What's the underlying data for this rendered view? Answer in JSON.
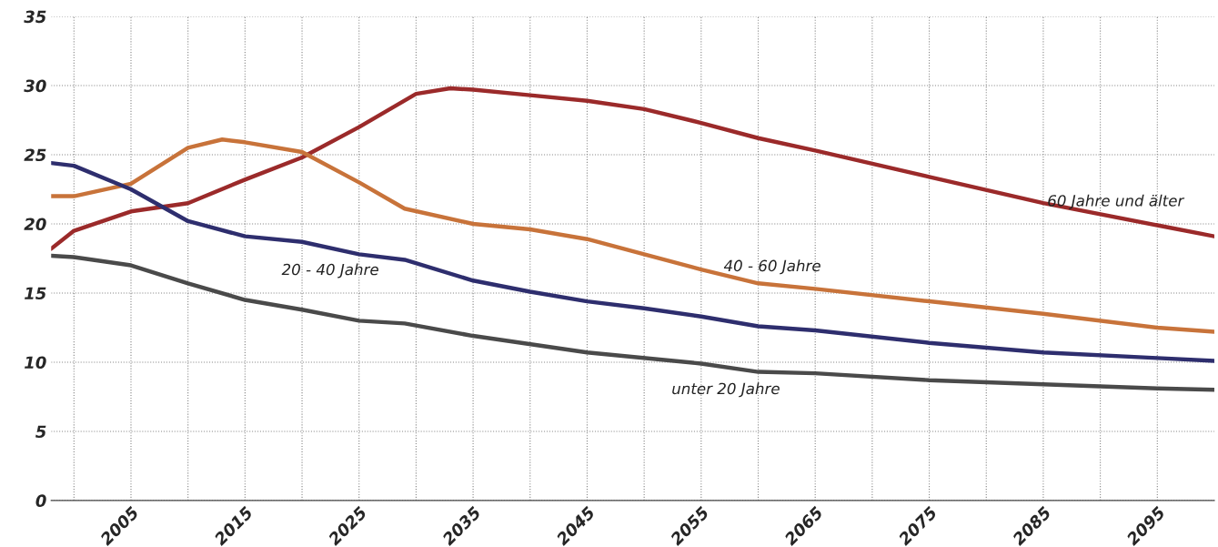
{
  "chart_data": {
    "type": "line",
    "xlim": [
      1998,
      2100
    ],
    "ylim": [
      0,
      35
    ],
    "xticks": [
      {
        "value": 2000,
        "label": null
      },
      2005,
      {
        "value": 2010,
        "label": null
      },
      2015,
      {
        "value": 2020,
        "label": null
      },
      2025,
      {
        "value": 2030,
        "label": null
      },
      2035,
      {
        "value": 2040,
        "label": null
      },
      2045,
      {
        "value": 2050,
        "label": null
      },
      2055,
      {
        "value": 2060,
        "label": null
      },
      2065,
      {
        "value": 2070,
        "label": null
      },
      2075,
      {
        "value": 2080,
        "label": null
      },
      2085,
      {
        "value": 2090,
        "label": null
      },
      2095
    ],
    "yticks": [
      0,
      5,
      10,
      15,
      20,
      25,
      30,
      35
    ],
    "grid": true,
    "legend": false,
    "line_style": "solid",
    "marker": "none",
    "series": [
      {
        "name": "60 Jahre und älter",
        "color": "#9b2a2a",
        "x": [
          1998,
          2000,
          2005,
          2010,
          2015,
          2020,
          2025,
          2030,
          2033,
          2035,
          2040,
          2045,
          2050,
          2055,
          2060,
          2065,
          2075,
          2085,
          2095,
          2100
        ],
        "values": [
          18.2,
          19.5,
          20.9,
          21.5,
          23.2,
          24.8,
          27.0,
          29.4,
          29.8,
          29.7,
          29.3,
          28.9,
          28.3,
          27.3,
          26.2,
          25.3,
          23.4,
          21.5,
          19.9,
          19.1
        ]
      },
      {
        "name": "40 - 60 Jahre",
        "color": "#c8733a",
        "x": [
          1998,
          2000,
          2005,
          2010,
          2013,
          2015,
          2020,
          2025,
          2029,
          2035,
          2040,
          2045,
          2050,
          2055,
          2060,
          2065,
          2075,
          2085,
          2095,
          2100
        ],
        "values": [
          22.0,
          22.0,
          22.9,
          25.5,
          26.1,
          25.9,
          25.2,
          23.0,
          21.1,
          20.0,
          19.6,
          18.9,
          17.8,
          16.7,
          15.7,
          15.3,
          14.4,
          13.5,
          12.5,
          12.2
        ]
      },
      {
        "name": "20 - 40 Jahre",
        "color": "#2e2e6e",
        "x": [
          1998,
          2000,
          2005,
          2010,
          2015,
          2020,
          2025,
          2029,
          2035,
          2040,
          2045,
          2050,
          2055,
          2060,
          2065,
          2075,
          2085,
          2095,
          2100
        ],
        "values": [
          24.4,
          24.2,
          22.5,
          20.2,
          19.1,
          18.7,
          17.8,
          17.4,
          15.9,
          15.1,
          14.4,
          13.9,
          13.3,
          12.6,
          12.3,
          11.4,
          10.7,
          10.3,
          10.1
        ]
      },
      {
        "name": "unter 20 Jahre",
        "color": "#4a4a4a",
        "x": [
          1998,
          2000,
          2005,
          2010,
          2015,
          2020,
          2025,
          2029,
          2035,
          2045,
          2055,
          2060,
          2065,
          2075,
          2085,
          2095,
          2100
        ],
        "values": [
          17.7,
          17.6,
          17.0,
          15.7,
          14.5,
          13.8,
          13.0,
          12.8,
          11.9,
          10.7,
          9.9,
          9.3,
          9.2,
          8.7,
          8.4,
          8.1,
          8.0
        ]
      }
    ]
  }
}
